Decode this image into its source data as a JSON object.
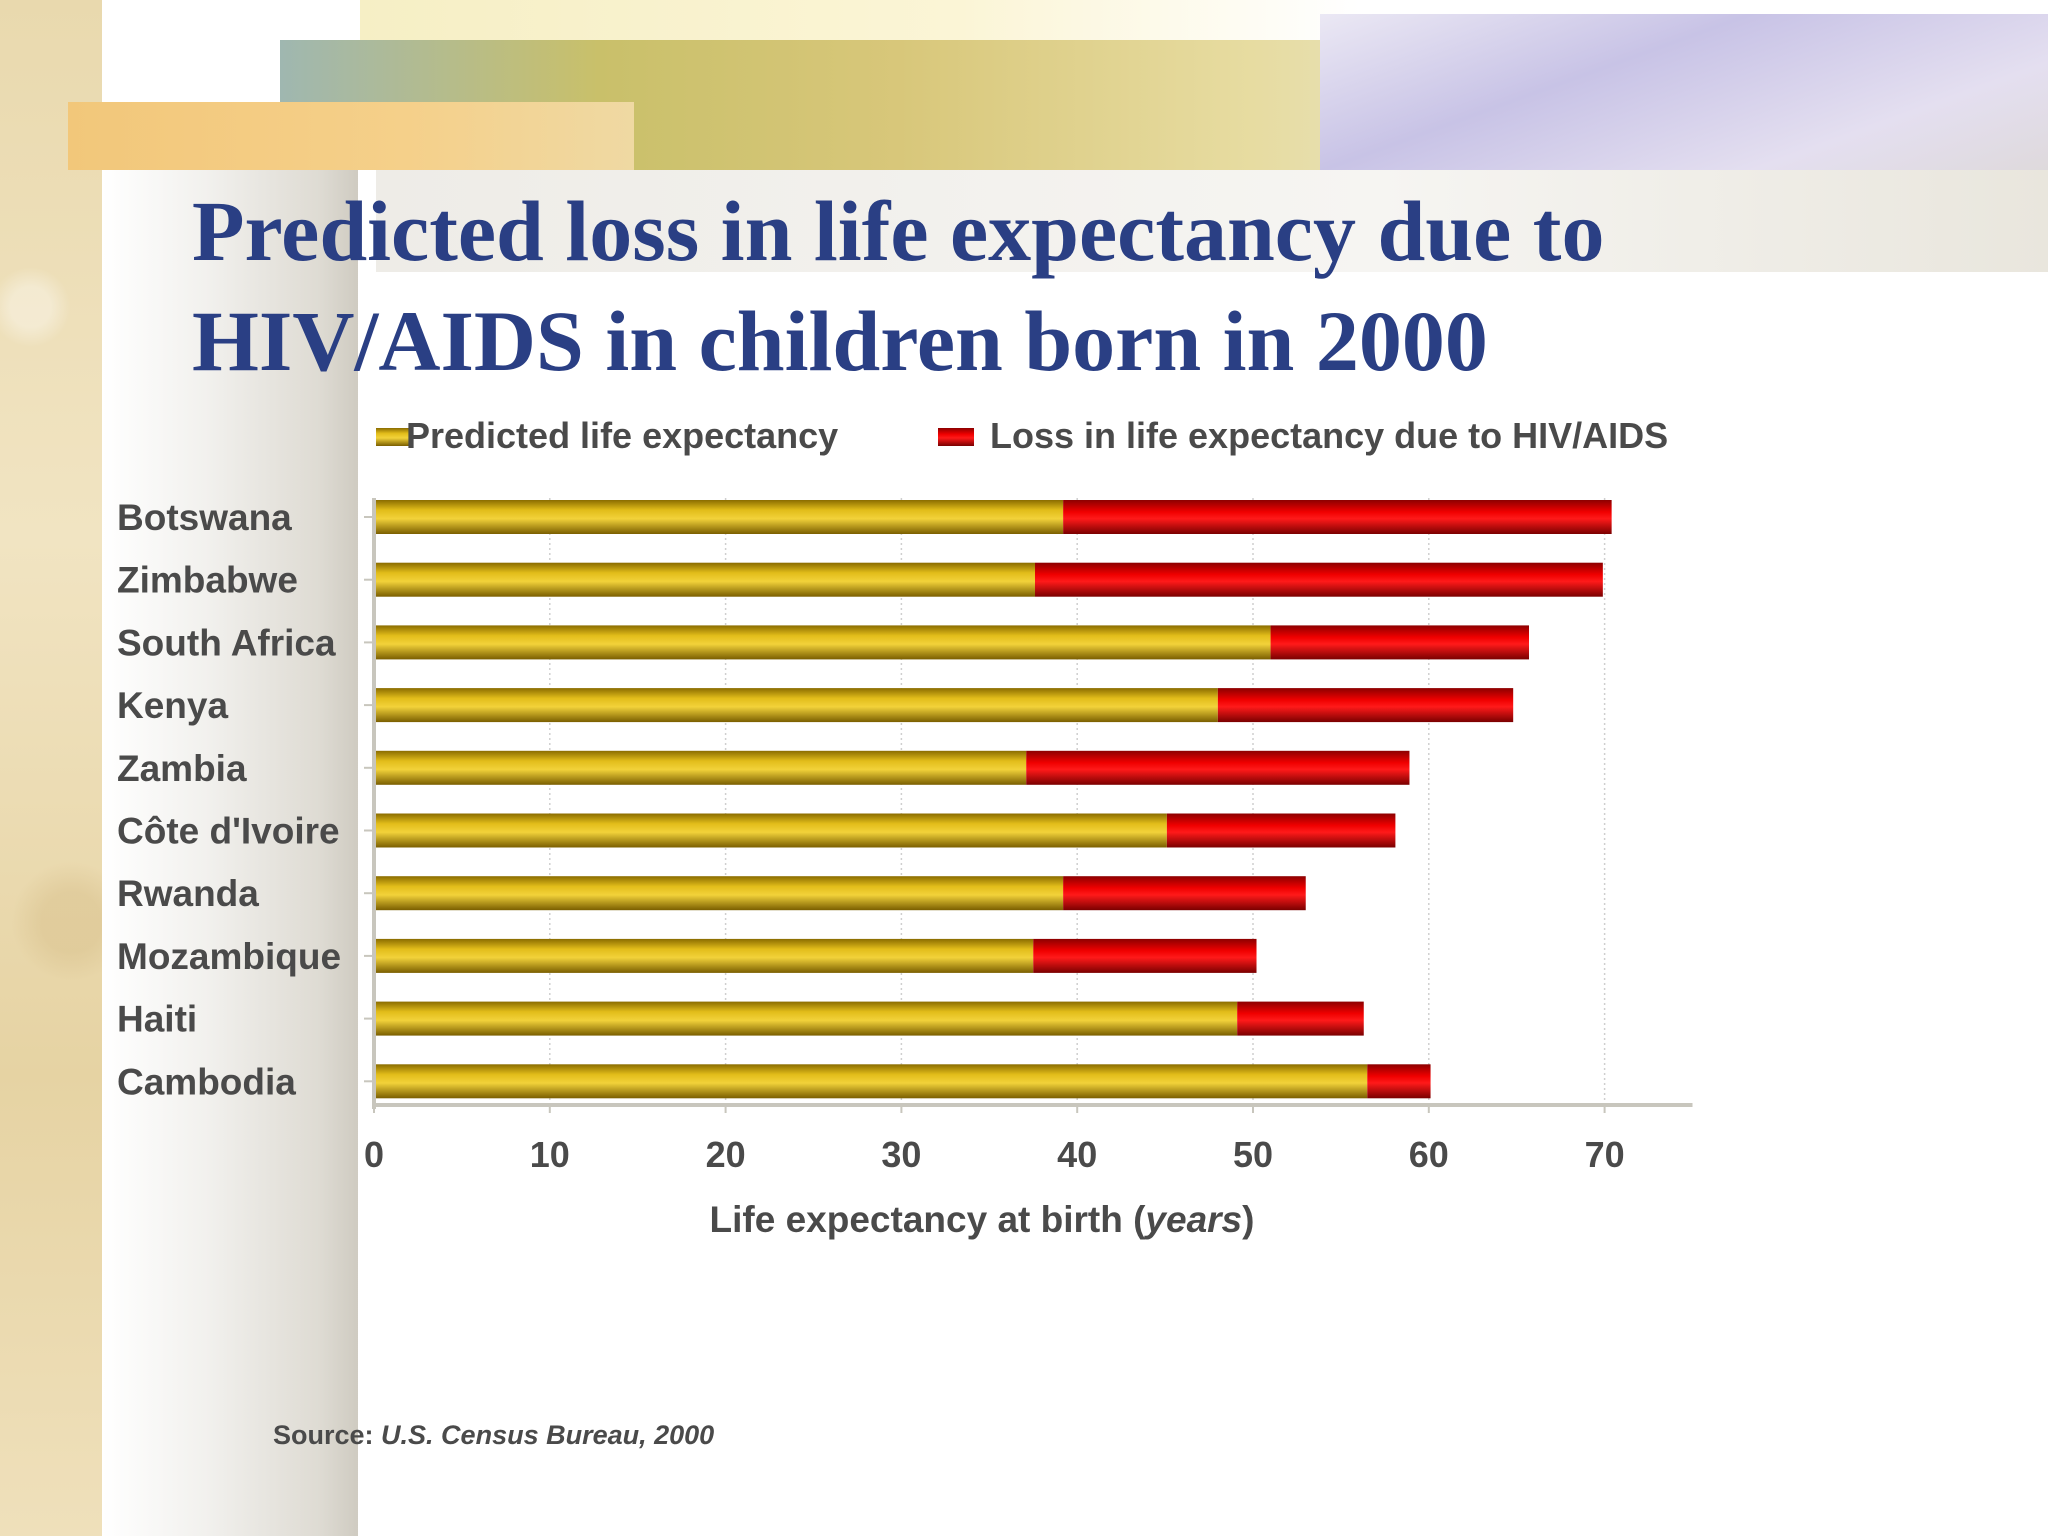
{
  "slide": {
    "title_line1": "Predicted loss in life expectancy due to",
    "title_line2": "HIV/AIDS in children born in 2000",
    "source_label": "Source:",
    "source_text": "U.S. Census Bureau, 2000"
  },
  "colors": {
    "title": "#2a3f84",
    "predicted": "#c9a000",
    "loss": "#e00000",
    "label_text": "#4a4a4a"
  },
  "chart_data": {
    "type": "bar",
    "orientation": "horizontal",
    "stacked": true,
    "title": "Predicted loss in life expectancy due to HIV/AIDS in children born in 2000",
    "xlabel_prefix": "Life expectancy at birth (",
    "xlabel_unit": "years",
    "xlabel_suffix": ")",
    "ylabel": "",
    "xlim": [
      0,
      75
    ],
    "xticks": [
      "0",
      "10",
      "20",
      "30",
      "40",
      "50",
      "60",
      "70"
    ],
    "grid": true,
    "legend_position": "top",
    "categories": [
      "Botswana",
      "Zimbabwe",
      "South Africa",
      "Kenya",
      "Zambia",
      "Côte d'Ivoire",
      "Rwanda",
      "Mozambique",
      "Haiti",
      "Cambodia"
    ],
    "series": [
      {
        "name": "Predicted life expectancy",
        "values": [
          39.2,
          37.6,
          51.0,
          48.0,
          37.1,
          45.1,
          39.2,
          37.5,
          49.1,
          56.5
        ]
      },
      {
        "name": "Loss in life expectancy due to HIV/AIDS",
        "values": [
          31.2,
          32.3,
          14.7,
          16.8,
          21.8,
          13.0,
          13.8,
          12.7,
          7.2,
          3.6
        ]
      }
    ]
  }
}
